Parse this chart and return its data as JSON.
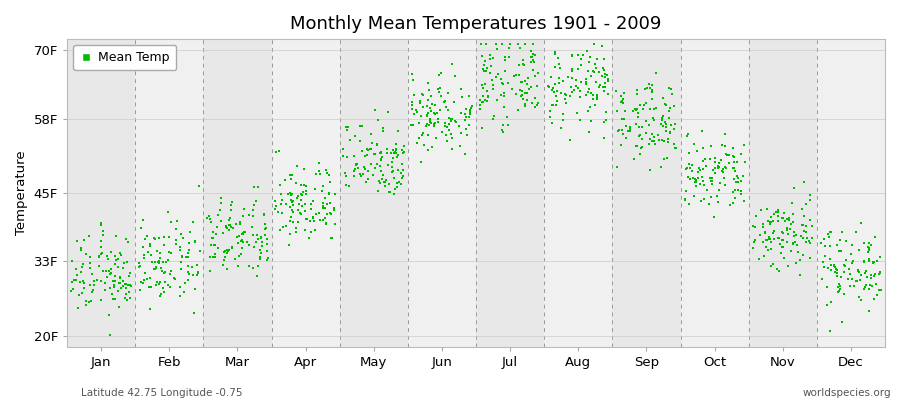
{
  "title": "Monthly Mean Temperatures 1901 - 2009",
  "ylabel": "Temperature",
  "xlabel_labels": [
    "Jan",
    "Feb",
    "Mar",
    "Apr",
    "May",
    "Jun",
    "Jul",
    "Aug",
    "Sep",
    "Oct",
    "Nov",
    "Dec"
  ],
  "ytick_labels": [
    "20F",
    "33F",
    "45F",
    "58F",
    "70F"
  ],
  "ytick_values": [
    20,
    33,
    45,
    58,
    70
  ],
  "ylim": [
    18,
    72
  ],
  "xlim": [
    -0.5,
    11.5
  ],
  "legend_label": "Mean Temp",
  "dot_color": "#00BB00",
  "background_color": "#EBEBEB",
  "footnote_left": "Latitude 42.75 Longitude -0.75",
  "footnote_right": "worldspecies.org",
  "monthly_means": [
    30.5,
    32.5,
    37.0,
    43.0,
    51.0,
    59.0,
    64.5,
    63.5,
    57.5,
    48.0,
    38.0,
    32.0
  ],
  "monthly_stds": [
    3.5,
    3.5,
    3.5,
    3.5,
    3.5,
    3.5,
    3.5,
    3.5,
    3.5,
    3.5,
    3.5,
    3.5
  ],
  "n_years": 109,
  "dashed_line_positions": [
    -0.5,
    0.5,
    1.5,
    2.5,
    3.5,
    4.5,
    5.5,
    6.5,
    7.5,
    8.5,
    9.5,
    10.5,
    11.5
  ],
  "tick_positions": [
    0,
    1,
    2,
    3,
    4,
    5,
    6,
    7,
    8,
    9,
    10,
    11
  ]
}
